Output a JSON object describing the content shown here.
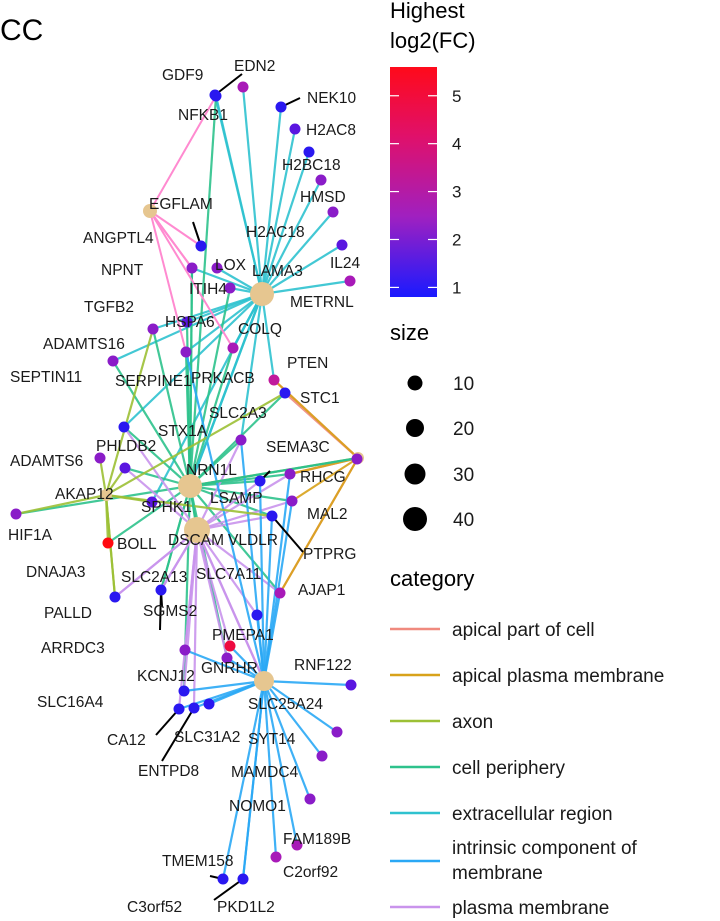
{
  "panel_title": "CC",
  "legend_color": {
    "title_line1": "Highest",
    "title_line2": "log2(FC)",
    "ticks": [
      "1",
      "2",
      "3",
      "4",
      "5"
    ],
    "tick_values": [
      1,
      2,
      3,
      4,
      5
    ],
    "range": [
      0.8,
      5.6
    ],
    "low_color": "#1a1aff",
    "mid_color": "#a020c0",
    "high_color": "#ff0a1a"
  },
  "legend_size": {
    "title": "size",
    "values": [
      "10",
      "20",
      "30",
      "40"
    ]
  },
  "legend_category": {
    "title": "category",
    "items": [
      {
        "label": "apical part of cell",
        "color": "#f08a7e"
      },
      {
        "label": "apical plasma membrane",
        "color": "#d8a21a"
      },
      {
        "label": "axon",
        "color": "#9cc035"
      },
      {
        "label": "cell periphery",
        "color": "#2ec28c"
      },
      {
        "label": "extracellular region",
        "color": "#2fc2cf"
      },
      {
        "label": "intrinsic component of membrane",
        "label_line1": "intrinsic component of",
        "label_line2": "membrane",
        "color": "#2aa8f5"
      },
      {
        "label": "plasma membrane",
        "color": "#c994ec"
      }
    ]
  },
  "category_nodes": [
    "apical part of cell",
    "apical plasma membrane",
    "axon",
    "cell periphery",
    "extracellular region",
    "intrinsic component of membrane",
    "plasma membrane"
  ],
  "gene_labels": [
    "GDF9",
    "EDN2",
    "NEK10",
    "NFKB1",
    "H2AC8",
    "H2BC18",
    "HMSD",
    "EGFLAM",
    "LOX",
    "H2AC18",
    "ANGPTL4",
    "IL24",
    "NPNT",
    "LAMA3",
    "ITIH4",
    "METRNL",
    "TGFB2",
    "HSPA6",
    "COLQ",
    "ADAMTS16",
    "PTEN",
    "SEPTIN11",
    "SERPINE1",
    "PRKACB",
    "STC1",
    "SLC2A3",
    "STX1A",
    "SEMA3C",
    "PHLDB2",
    "ADAMTS6",
    "NRN1L",
    "RHCG",
    "AKAP12",
    "LSAMP",
    "SPHK1",
    "MAL2",
    "HIF1A",
    "BOLL",
    "DSCAM",
    "VLDLR",
    "PTPRG",
    "DNAJA3",
    "SLC2A13",
    "SLC7A11",
    "AJAP1",
    "PALLD",
    "SGMS2",
    "PMEPA1",
    "ARRDC3",
    "GNRHR",
    "RNF122",
    "KCNJ12",
    "SLC25A24",
    "SLC16A4",
    "CA12",
    "SLC31A2",
    "SYT14",
    "ENTPD8",
    "MAMDC4",
    "NOMO1",
    "FAM189B",
    "TMEM158",
    "C2orf92",
    "C3orf52",
    "PKD1L2"
  ]
}
